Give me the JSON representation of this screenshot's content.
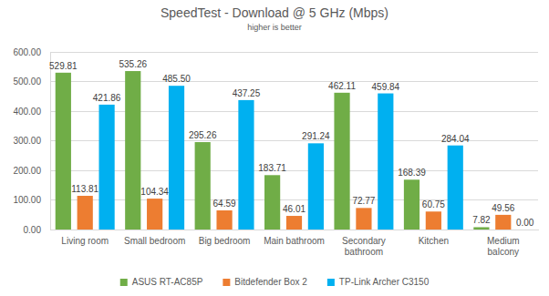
{
  "chart_data": {
    "type": "bar",
    "title": "SpeedTest - Download @ 5 GHz (Mbps)",
    "subtitle": "higher is better",
    "categories": [
      "Living room",
      "Small bedroom",
      "Big bedroom",
      "Main bathroom",
      "Secondary bathroom",
      "Kitchen",
      "Medium balcony"
    ],
    "series": [
      {
        "name": "ASUS RT-AC85P",
        "color": "#70ad47",
        "values": [
          529.81,
          535.26,
          295.26,
          183.71,
          462.11,
          168.39,
          7.82
        ],
        "value_labels": [
          "529.81",
          "535.26",
          "295.26",
          "183.71",
          "462.11",
          "168.39",
          "7.82"
        ]
      },
      {
        "name": "Bitdefender Box 2",
        "color": "#ed7d31",
        "values": [
          113.81,
          104.34,
          64.59,
          46.01,
          72.77,
          60.75,
          49.56
        ],
        "value_labels": [
          "113.81",
          "104.34",
          "64.59",
          "46.01",
          "72.77",
          "60.75",
          "49.56"
        ]
      },
      {
        "name": "TP-Link Archer C3150",
        "color": "#00b0f0",
        "values": [
          421.86,
          485.5,
          437.25,
          291.24,
          459.84,
          284.04,
          0
        ],
        "value_labels": [
          "421.86",
          "485.50",
          "437.25",
          "291.24",
          "459.84",
          "284.04",
          "0.00"
        ]
      }
    ],
    "ylim": [
      0,
      600
    ],
    "yticks": [
      {
        "value": 0,
        "label": "0.00"
      },
      {
        "value": 100,
        "label": "100.00"
      },
      {
        "value": 200,
        "label": "200.00"
      },
      {
        "value": 300,
        "label": "300.00"
      },
      {
        "value": 400,
        "label": "400.00"
      },
      {
        "value": 500,
        "label": "500.00"
      },
      {
        "value": 600,
        "label": "600.00"
      }
    ],
    "grid": true,
    "legend": "bottom",
    "data_labels": true
  }
}
